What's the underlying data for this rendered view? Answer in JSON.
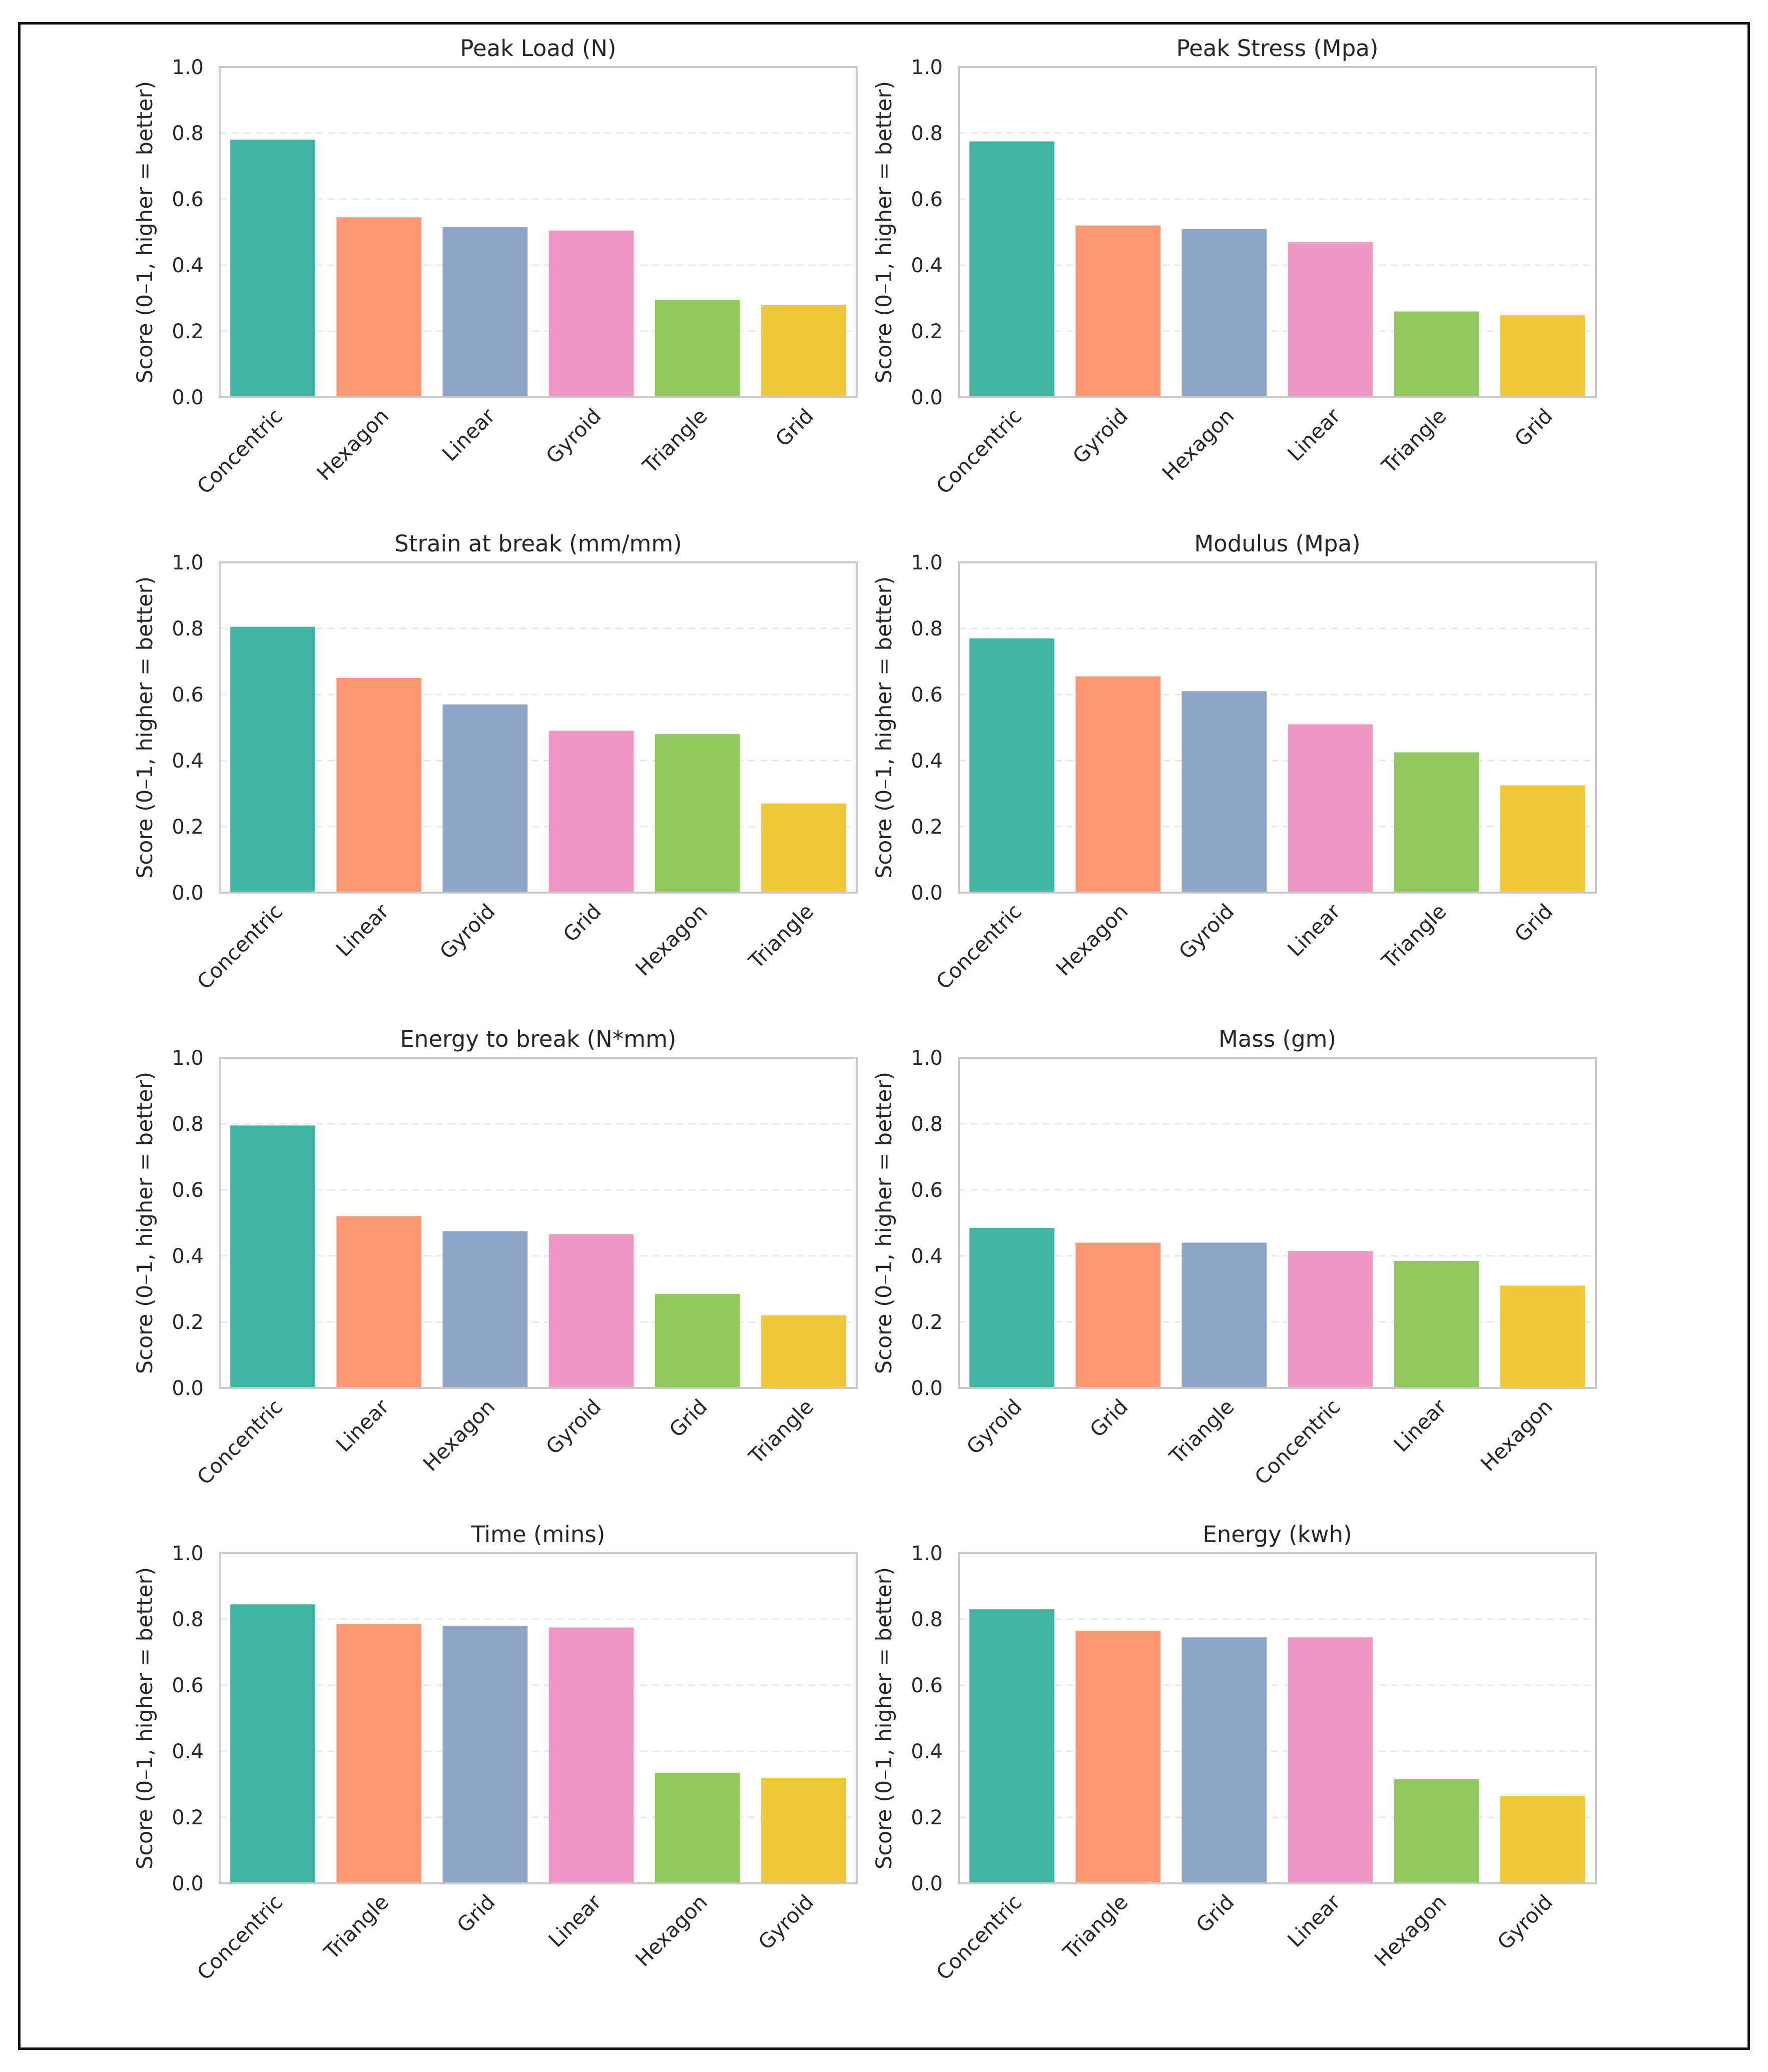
{
  "figure": {
    "colors": [
      "#3fb5a0",
      "#fc9673",
      "#8fa4c6",
      "#f098c4",
      "#92c95f",
      "#f0c93a"
    ],
    "gridline_color": "#e8e8ea",
    "axis_color": "#c9c9cc"
  },
  "chart_data": [
    {
      "type": "bar",
      "title": "Peak Load (N)",
      "ylabel": "Score (0–1, higher = better)",
      "xlabel": "",
      "ylim": [
        0,
        1
      ],
      "yticks": [
        "0.0",
        "0.2",
        "0.4",
        "0.6",
        "0.8",
        "1.0"
      ],
      "categories": [
        "Concentric",
        "Hexagon",
        "Linear",
        "Gyroid",
        "Triangle",
        "Grid"
      ],
      "values": [
        0.78,
        0.545,
        0.515,
        0.505,
        0.295,
        0.28
      ]
    },
    {
      "type": "bar",
      "title": "Peak Stress (Mpa)",
      "ylabel": "Score (0–1, higher = better)",
      "xlabel": "",
      "ylim": [
        0,
        1
      ],
      "yticks": [
        "0.0",
        "0.2",
        "0.4",
        "0.6",
        "0.8",
        "1.0"
      ],
      "categories": [
        "Concentric",
        "Gyroid",
        "Hexagon",
        "Linear",
        "Triangle",
        "Grid"
      ],
      "values": [
        0.775,
        0.52,
        0.51,
        0.47,
        0.26,
        0.25
      ]
    },
    {
      "type": "bar",
      "title": "Strain at break (mm/mm)",
      "ylabel": "Score (0–1, higher = better)",
      "xlabel": "",
      "ylim": [
        0,
        1
      ],
      "yticks": [
        "0.0",
        "0.2",
        "0.4",
        "0.6",
        "0.8",
        "1.0"
      ],
      "categories": [
        "Concentric",
        "Linear",
        "Gyroid",
        "Grid",
        "Hexagon",
        "Triangle"
      ],
      "values": [
        0.805,
        0.65,
        0.57,
        0.49,
        0.48,
        0.27
      ]
    },
    {
      "type": "bar",
      "title": "Modulus (Mpa)",
      "ylabel": "Score (0–1, higher = better)",
      "xlabel": "",
      "ylim": [
        0,
        1
      ],
      "yticks": [
        "0.0",
        "0.2",
        "0.4",
        "0.6",
        "0.8",
        "1.0"
      ],
      "categories": [
        "Concentric",
        "Hexagon",
        "Gyroid",
        "Linear",
        "Triangle",
        "Grid"
      ],
      "values": [
        0.77,
        0.655,
        0.61,
        0.51,
        0.425,
        0.325
      ]
    },
    {
      "type": "bar",
      "title": "Energy to break (N*mm)",
      "ylabel": "Score (0–1, higher = better)",
      "xlabel": "",
      "ylim": [
        0,
        1
      ],
      "yticks": [
        "0.0",
        "0.2",
        "0.4",
        "0.6",
        "0.8",
        "1.0"
      ],
      "categories": [
        "Concentric",
        "Linear",
        "Hexagon",
        "Gyroid",
        "Grid",
        "Triangle"
      ],
      "values": [
        0.795,
        0.52,
        0.475,
        0.465,
        0.285,
        0.22
      ]
    },
    {
      "type": "bar",
      "title": "Mass (gm)",
      "ylabel": "Score (0–1, higher = better)",
      "xlabel": "",
      "ylim": [
        0,
        1
      ],
      "yticks": [
        "0.0",
        "0.2",
        "0.4",
        "0.6",
        "0.8",
        "1.0"
      ],
      "categories": [
        "Gyroid",
        "Grid",
        "Triangle",
        "Concentric",
        "Linear",
        "Hexagon"
      ],
      "values": [
        0.485,
        0.44,
        0.44,
        0.415,
        0.385,
        0.31
      ]
    },
    {
      "type": "bar",
      "title": "Time (mins)",
      "ylabel": "Score (0–1, higher = better)",
      "xlabel": "",
      "ylim": [
        0,
        1
      ],
      "yticks": [
        "0.0",
        "0.2",
        "0.4",
        "0.6",
        "0.8",
        "1.0"
      ],
      "categories": [
        "Concentric",
        "Triangle",
        "Grid",
        "Linear",
        "Hexagon",
        "Gyroid"
      ],
      "values": [
        0.845,
        0.785,
        0.78,
        0.775,
        0.335,
        0.32
      ]
    },
    {
      "type": "bar",
      "title": "Energy (kwh)",
      "ylabel": "Score (0–1, higher = better)",
      "xlabel": "",
      "ylim": [
        0,
        1
      ],
      "yticks": [
        "0.0",
        "0.2",
        "0.4",
        "0.6",
        "0.8",
        "1.0"
      ],
      "categories": [
        "Concentric",
        "Triangle",
        "Grid",
        "Linear",
        "Hexagon",
        "Gyroid"
      ],
      "values": [
        0.83,
        0.765,
        0.745,
        0.745,
        0.315,
        0.265
      ]
    }
  ]
}
